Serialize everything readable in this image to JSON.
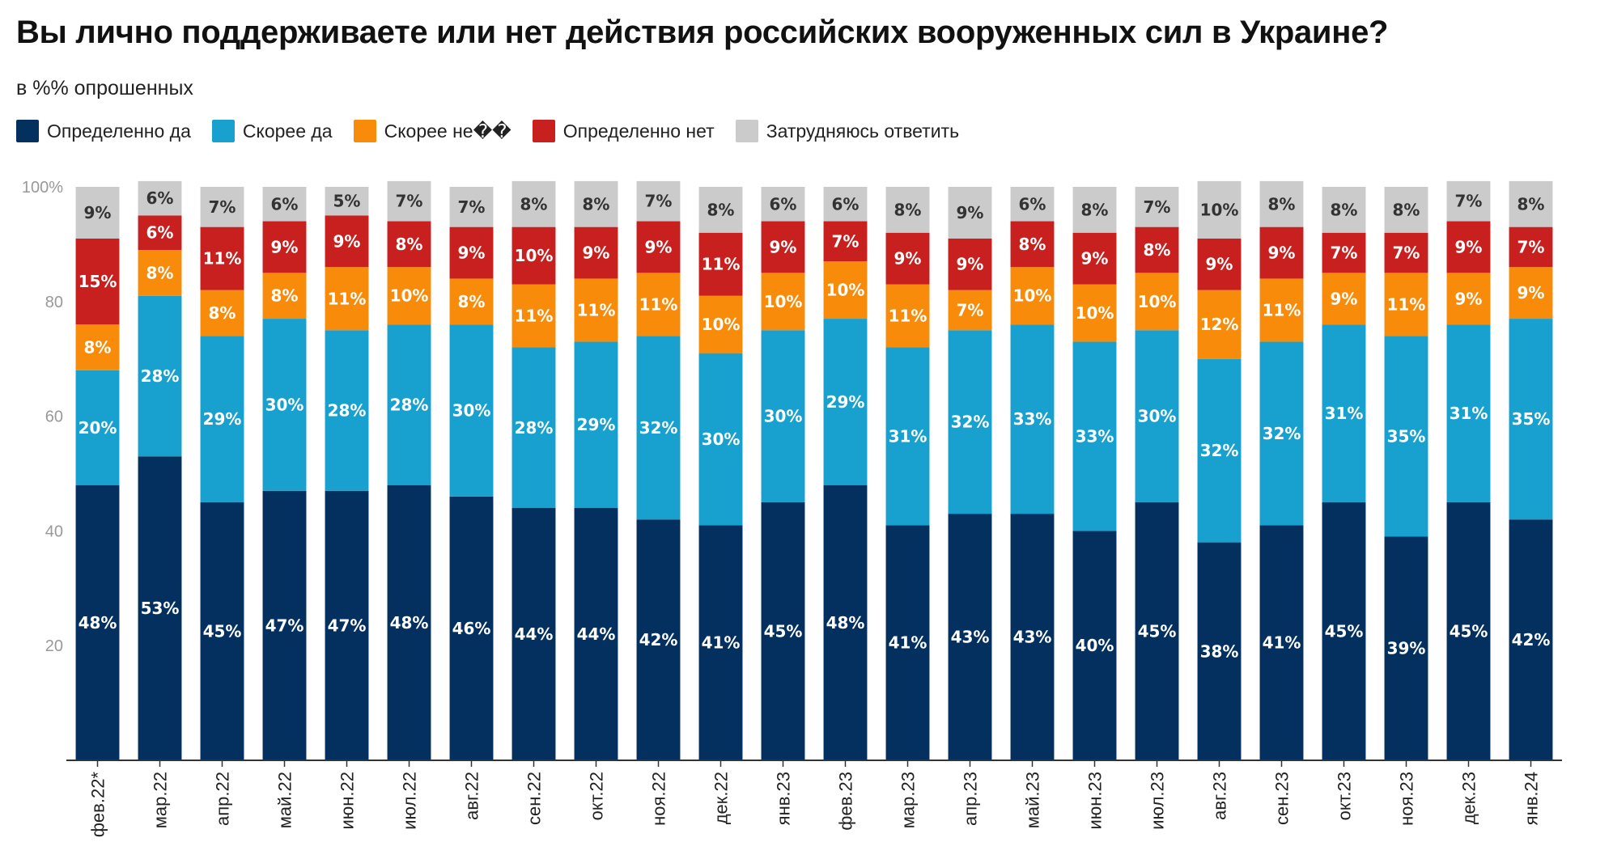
{
  "title": "Вы лично поддерживаете или нет действия российских вооруженных сил в Украине?",
  "subtitle": "в %% опрошенных",
  "colors": {
    "definitely_yes": "#03305f",
    "rather_yes": "#18a0cf",
    "rather_no": "#f88c0a",
    "definitely_no": "#c8201f",
    "hard_to_say": "#cbcbcb"
  },
  "legend": [
    {
      "label": "Определенно да",
      "color": "#03305f"
    },
    {
      "label": "Скорее да",
      "color": "#18a0cf"
    },
    {
      "label": "Скорее не��",
      "color": "#f88c0a"
    },
    {
      "label": "Определенно нет",
      "color": "#c8201f"
    },
    {
      "label": "Затрудняюсь ответить",
      "color": "#cbcbcb"
    }
  ],
  "chart_data": {
    "type": "bar",
    "stacked": true,
    "categories": [
      "фев.22*",
      "мар.22",
      "апр.22",
      "май.22",
      "июн.22",
      "июл.22",
      "авг.22",
      "сен.22",
      "окт.22",
      "ноя.22",
      "дек.22",
      "янв.23",
      "фев.23",
      "мар.23",
      "апр.23",
      "май.23",
      "июн.23",
      "июл.23",
      "авг.23",
      "сен.23",
      "окт.23",
      "ноя.23",
      "дек.23",
      "янв.24"
    ],
    "series": [
      {
        "name": "Определенно да",
        "color": "#03305f",
        "label_color": "#ffffff",
        "values": [
          48,
          53,
          45,
          47,
          47,
          48,
          46,
          44,
          44,
          42,
          41,
          45,
          48,
          41,
          43,
          43,
          40,
          45,
          38,
          41,
          45,
          39,
          45,
          42
        ]
      },
      {
        "name": "Скорее да",
        "color": "#18a0cf",
        "label_color": "#ffffff",
        "values": [
          20,
          28,
          29,
          30,
          28,
          28,
          30,
          28,
          29,
          32,
          30,
          30,
          29,
          31,
          32,
          33,
          33,
          30,
          32,
          32,
          31,
          35,
          31,
          35
        ]
      },
      {
        "name": "Скорее не��",
        "color": "#f88c0a",
        "label_color": "#ffffff",
        "values": [
          8,
          8,
          8,
          8,
          11,
          10,
          8,
          11,
          11,
          11,
          10,
          10,
          10,
          11,
          7,
          10,
          10,
          10,
          12,
          11,
          9,
          11,
          9,
          9
        ]
      },
      {
        "name": "Определенно нет",
        "color": "#c8201f",
        "label_color": "#ffffff",
        "values": [
          15,
          6,
          11,
          9,
          9,
          8,
          9,
          10,
          9,
          9,
          11,
          9,
          7,
          9,
          9,
          8,
          9,
          8,
          9,
          9,
          7,
          7,
          9,
          7
        ]
      },
      {
        "name": "Затрудняюсь ответить",
        "color": "#cbcbcb",
        "label_color": "#333333",
        "values": [
          9,
          6,
          7,
          6,
          5,
          7,
          7,
          8,
          8,
          7,
          8,
          6,
          6,
          8,
          9,
          6,
          8,
          7,
          10,
          8,
          8,
          8,
          7,
          8
        ]
      }
    ],
    "value_suffix": "%",
    "yticks": [
      20,
      40,
      60,
      80,
      "100%"
    ],
    "ylim": [
      0,
      100
    ],
    "grid": false,
    "legend_position": "top-left"
  }
}
